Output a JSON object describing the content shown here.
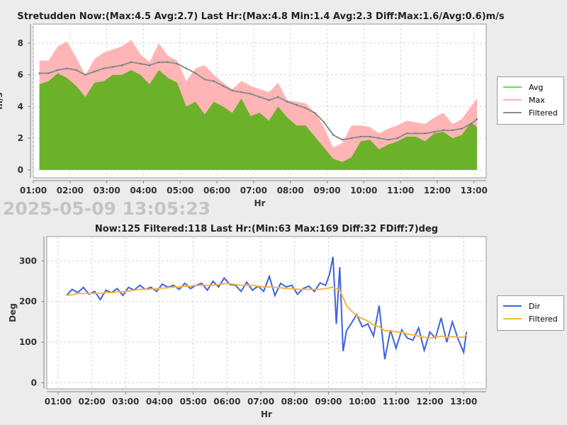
{
  "timestamp": "2025-05-09 13:05:23",
  "colors": {
    "avg": "#6cb12a",
    "avg_legend": "#4ee84e",
    "max": "#ffb5b5",
    "filtered_wind": "#8c8c8c",
    "dir": "#3f63dc",
    "filtered_dir": "#f6b73c"
  },
  "chart_data": [
    {
      "type": "area",
      "title": "Stretudden Now:(Max:4.5 Avg:2.7) Last Hr:(Max:4.8 Min:1.4 Avg:2.3 Diff:Max:1.6/Avg:0.6)m/s",
      "xlabel": "Hr",
      "ylabel": "m/s",
      "xlim": [
        "01:00",
        "13:20"
      ],
      "ylim": [
        -0.5,
        9.2
      ],
      "x_ticks": [
        "01:00",
        "02:00",
        "03:00",
        "04:00",
        "05:00",
        "06:00",
        "07:00",
        "08:00",
        "09:00",
        "10:00",
        "11:00",
        "12:00",
        "13:00"
      ],
      "y_ticks": [
        0,
        2,
        4,
        6,
        8
      ],
      "grid": true,
      "legend": "right",
      "x": [
        "01:10",
        "01:25",
        "01:40",
        "01:55",
        "02:10",
        "02:25",
        "02:40",
        "02:55",
        "03:10",
        "03:25",
        "03:40",
        "03:55",
        "04:10",
        "04:25",
        "04:40",
        "04:55",
        "05:10",
        "05:25",
        "05:40",
        "05:55",
        "06:10",
        "06:25",
        "06:40",
        "06:55",
        "07:10",
        "07:25",
        "07:40",
        "07:55",
        "08:10",
        "08:25",
        "08:40",
        "08:55",
        "09:10",
        "09:25",
        "09:40",
        "09:55",
        "10:10",
        "10:25",
        "10:40",
        "10:55",
        "11:10",
        "11:25",
        "11:40",
        "11:55",
        "12:10",
        "12:25",
        "12:40",
        "12:55",
        "13:05"
      ],
      "series": [
        {
          "name": "Avg",
          "values": [
            5.4,
            5.6,
            6.1,
            5.8,
            5.3,
            4.6,
            5.5,
            5.6,
            6.0,
            6.0,
            6.3,
            6.0,
            5.4,
            6.3,
            5.8,
            5.5,
            4.0,
            4.3,
            3.5,
            4.3,
            4.0,
            3.6,
            4.5,
            3.4,
            3.6,
            3.1,
            4.0,
            3.3,
            2.8,
            2.8,
            2.1,
            1.4,
            0.7,
            0.5,
            0.8,
            1.8,
            1.9,
            1.3,
            1.6,
            1.8,
            2.1,
            2.1,
            1.8,
            2.3,
            2.4,
            2.0,
            2.2,
            3.0,
            2.7
          ]
        },
        {
          "name": "Max",
          "values": [
            6.9,
            6.9,
            7.8,
            8.1,
            7.1,
            6.0,
            7.0,
            7.4,
            7.6,
            7.8,
            8.2,
            7.3,
            6.8,
            8.0,
            7.2,
            6.9,
            5.6,
            6.4,
            6.6,
            6.0,
            5.5,
            5.1,
            5.6,
            5.3,
            5.1,
            4.9,
            5.5,
            4.4,
            4.3,
            4.2,
            3.6,
            2.7,
            1.4,
            1.7,
            2.8,
            2.8,
            2.7,
            2.3,
            2.6,
            2.8,
            3.1,
            3.0,
            2.9,
            3.3,
            3.6,
            2.9,
            3.2,
            4.0,
            4.5
          ]
        },
        {
          "name": "Filtered",
          "values": [
            6.1,
            6.1,
            6.3,
            6.4,
            6.3,
            6.0,
            6.2,
            6.4,
            6.5,
            6.6,
            6.8,
            6.7,
            6.6,
            6.8,
            6.8,
            6.7,
            6.4,
            6.1,
            5.7,
            5.6,
            5.3,
            5.0,
            4.9,
            4.8,
            4.6,
            4.4,
            4.6,
            4.3,
            4.1,
            3.9,
            3.6,
            3.0,
            2.2,
            1.9,
            2.0,
            2.1,
            2.1,
            2.0,
            1.9,
            2.0,
            2.3,
            2.3,
            2.3,
            2.4,
            2.5,
            2.5,
            2.6,
            2.9,
            3.2
          ]
        }
      ]
    },
    {
      "type": "line",
      "title": "Now:125 Filtered:118 Last Hr:(Min:63 Max:169 Diff:32 FDiff:7)deg",
      "xlabel": "Hr",
      "ylabel": "Deg",
      "xlim": [
        "00:40",
        "13:40"
      ],
      "ylim": [
        -15,
        360
      ],
      "x_ticks": [
        "01:00",
        "02:00",
        "03:00",
        "04:00",
        "05:00",
        "06:00",
        "07:00",
        "08:00",
        "09:00",
        "10:00",
        "11:00",
        "12:00",
        "13:00"
      ],
      "y_ticks": [
        0,
        100,
        200,
        300
      ],
      "grid": true,
      "legend": "right",
      "x": [
        "01:15",
        "01:25",
        "01:35",
        "01:45",
        "01:55",
        "02:05",
        "02:15",
        "02:25",
        "02:35",
        "02:45",
        "02:55",
        "03:05",
        "03:15",
        "03:25",
        "03:35",
        "03:45",
        "03:55",
        "04:05",
        "04:15",
        "04:25",
        "04:35",
        "04:45",
        "04:55",
        "05:05",
        "05:15",
        "05:25",
        "05:35",
        "05:45",
        "05:55",
        "06:05",
        "06:15",
        "06:25",
        "06:35",
        "06:45",
        "06:55",
        "07:05",
        "07:15",
        "07:25",
        "07:35",
        "07:45",
        "07:55",
        "08:05",
        "08:15",
        "08:25",
        "08:35",
        "08:45",
        "08:55",
        "09:02",
        "09:08",
        "09:14",
        "09:20",
        "09:26",
        "09:32",
        "09:40",
        "09:50",
        "10:00",
        "10:10",
        "10:20",
        "10:30",
        "10:40",
        "10:50",
        "11:00",
        "11:10",
        "11:20",
        "11:30",
        "11:40",
        "11:50",
        "12:00",
        "12:10",
        "12:20",
        "12:30",
        "12:40",
        "12:50",
        "13:00",
        "13:05"
      ],
      "series": [
        {
          "name": "Dir",
          "values": [
            215,
            230,
            222,
            235,
            218,
            225,
            205,
            228,
            222,
            232,
            215,
            235,
            228,
            240,
            230,
            235,
            225,
            243,
            235,
            240,
            230,
            245,
            232,
            240,
            245,
            228,
            250,
            236,
            258,
            242,
            240,
            225,
            248,
            228,
            238,
            225,
            262,
            215,
            245,
            236,
            240,
            218,
            232,
            238,
            225,
            246,
            240,
            268,
            310,
            145,
            285,
            78,
            128,
            145,
            168,
            138,
            145,
            115,
            190,
            58,
            130,
            85,
            130,
            110,
            105,
            135,
            80,
            125,
            110,
            160,
            100,
            150,
            108,
            75,
            125
          ]
        },
        {
          "name": "Filtered",
          "values": [
            215,
            217,
            220,
            220,
            220,
            220,
            220,
            222,
            222,
            224,
            224,
            226,
            228,
            230,
            230,
            231,
            232,
            233,
            234,
            236,
            236,
            238,
            238,
            240,
            240,
            240,
            240,
            242,
            244,
            244,
            242,
            240,
            240,
            240,
            238,
            236,
            236,
            235,
            234,
            232,
            232,
            230,
            230,
            230,
            230,
            230,
            232,
            234,
            235,
            232,
            228,
            210,
            190,
            178,
            165,
            158,
            152,
            142,
            138,
            128,
            128,
            125,
            125,
            120,
            118,
            115,
            112,
            110,
            112,
            115,
            112,
            114,
            112,
            112,
            118
          ]
        }
      ]
    }
  ]
}
